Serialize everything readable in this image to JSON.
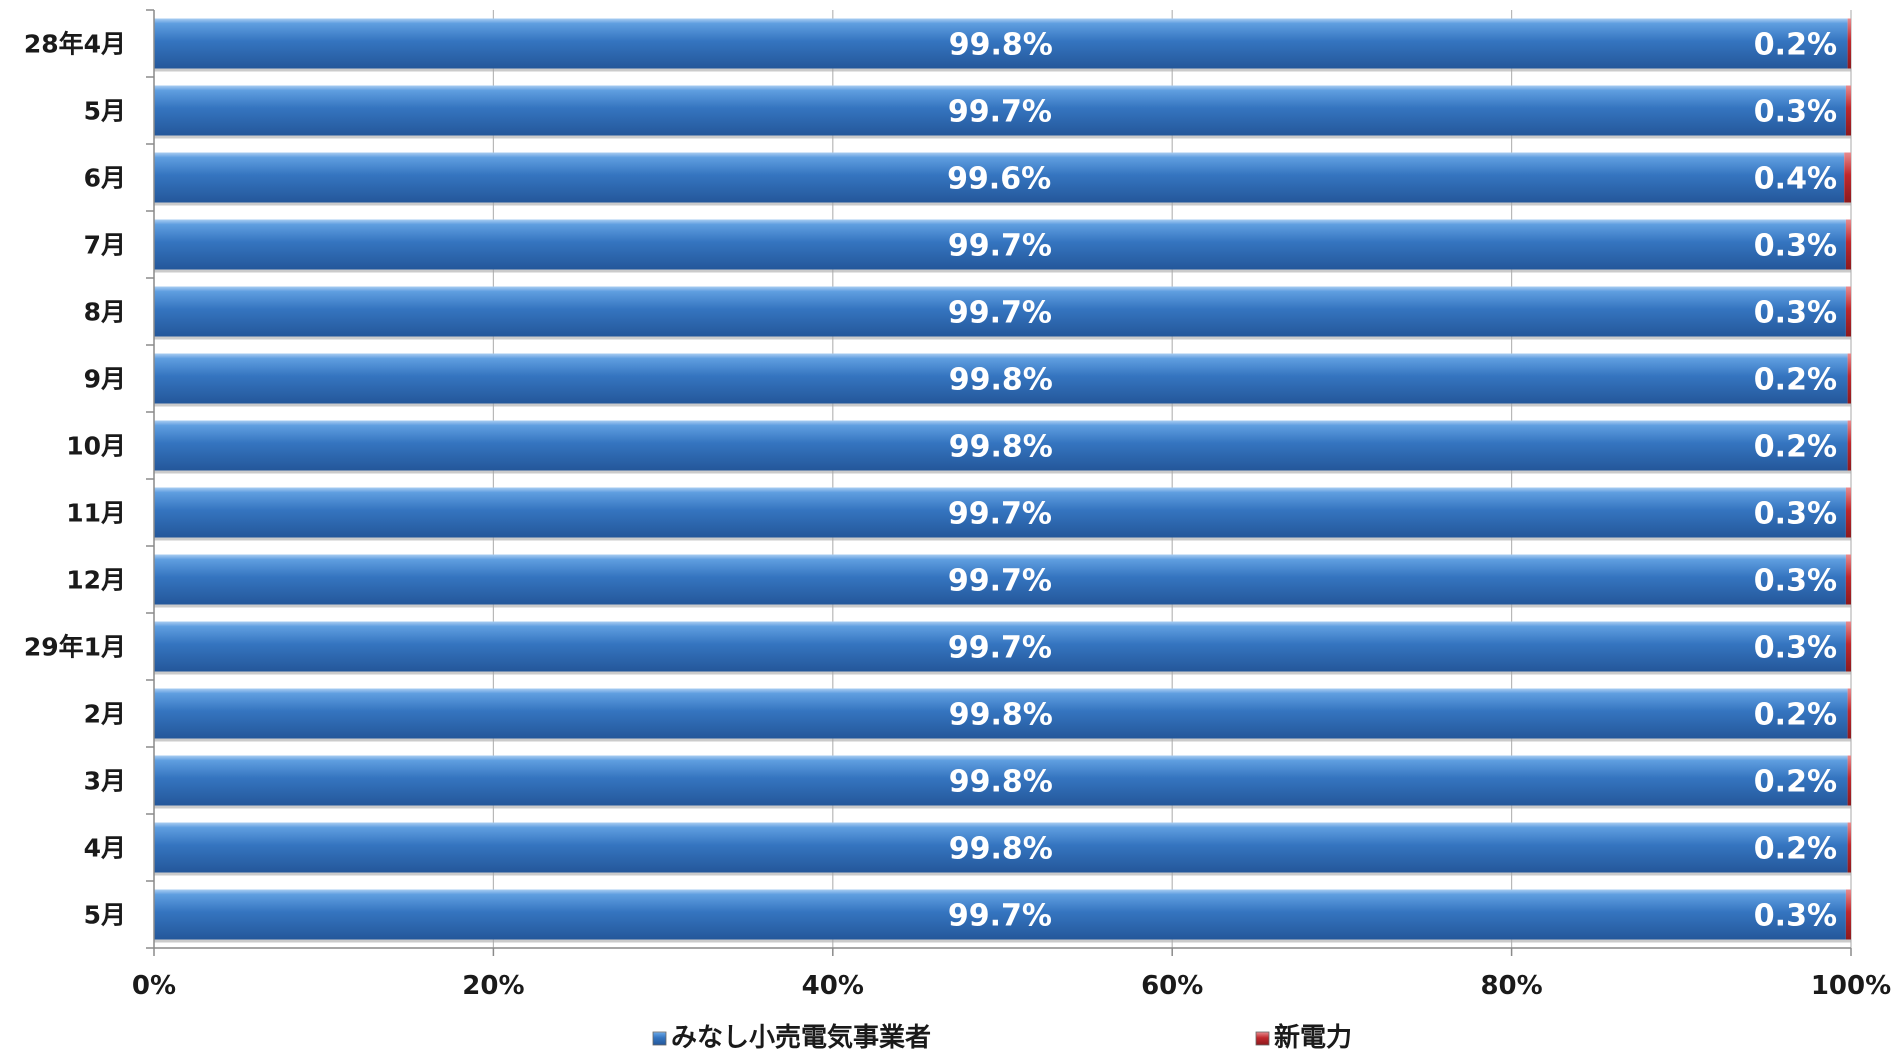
{
  "chart_data": {
    "type": "bar",
    "orientation": "horizontal",
    "stacked": true,
    "percent_stacked": true,
    "categories": [
      "28年4月",
      "5月",
      "6月",
      "7月",
      "8月",
      "9月",
      "10月",
      "11月",
      "12月",
      "29年1月",
      "2月",
      "3月",
      "4月",
      "5月"
    ],
    "series": [
      {
        "name": "みなし小売電気事業者",
        "color": "#3575C0",
        "values": [
          99.8,
          99.7,
          99.6,
          99.7,
          99.7,
          99.8,
          99.8,
          99.7,
          99.7,
          99.7,
          99.8,
          99.8,
          99.8,
          99.7
        ],
        "labels": [
          "99.8%",
          "99.7%",
          "99.6%",
          "99.7%",
          "99.7%",
          "99.8%",
          "99.8%",
          "99.7%",
          "99.7%",
          "99.7%",
          "99.8%",
          "99.8%",
          "99.8%",
          "99.7%"
        ]
      },
      {
        "name": "新電力",
        "color": "#C0282D",
        "values": [
          0.2,
          0.3,
          0.4,
          0.3,
          0.3,
          0.2,
          0.2,
          0.3,
          0.3,
          0.3,
          0.2,
          0.2,
          0.2,
          0.3
        ],
        "labels": [
          "0.2%",
          "0.3%",
          "0.4%",
          "0.3%",
          "0.3%",
          "0.2%",
          "0.2%",
          "0.3%",
          "0.3%",
          "0.3%",
          "0.2%",
          "0.2%",
          "0.2%",
          "0.3%"
        ]
      }
    ],
    "x_ticks": [
      "0%",
      "20%",
      "40%",
      "60%",
      "80%",
      "100%"
    ],
    "xlim": [
      0,
      100
    ],
    "grid": true,
    "legend_position": "bottom"
  }
}
